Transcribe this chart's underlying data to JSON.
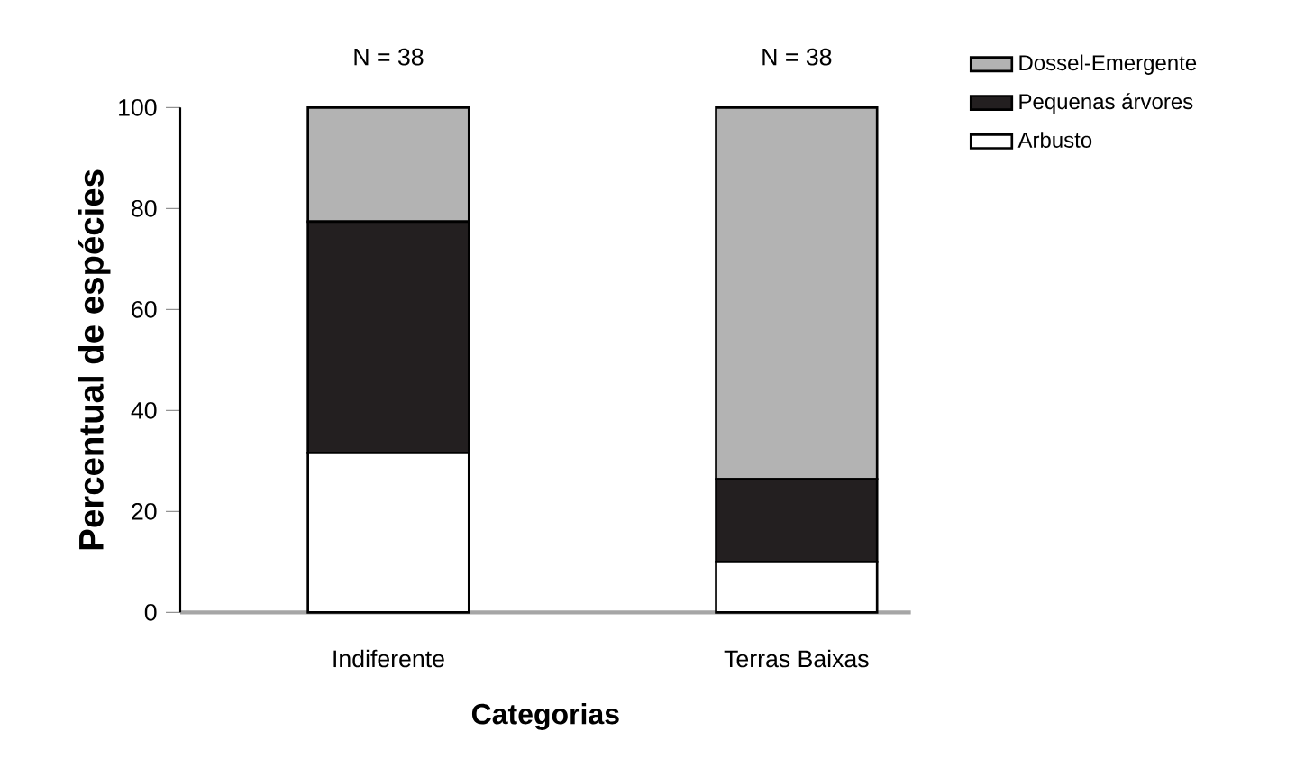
{
  "chart_data": {
    "type": "bar",
    "stacked": true,
    "xlabel": "Categorias",
    "ylabel": "Percentual de espécies",
    "categories": [
      "Indiferente",
      "Terras Baixas"
    ],
    "series": [
      {
        "name": "Arbusto",
        "color": "#ffffff",
        "values": [
          31.6,
          10.0
        ]
      },
      {
        "name": "Pequenas árvores",
        "color": "#231f20",
        "values": [
          45.8,
          16.4
        ]
      },
      {
        "name": "Dossel-Emergente",
        "color": "#b3b3b3",
        "values": [
          22.6,
          73.6
        ]
      }
    ],
    "ylim": [
      0,
      100
    ],
    "yticks": [
      0,
      20,
      40,
      60,
      80,
      100
    ],
    "grid": false,
    "legend": "top right",
    "annotations": [
      "N = 38",
      "N = 38"
    ]
  }
}
